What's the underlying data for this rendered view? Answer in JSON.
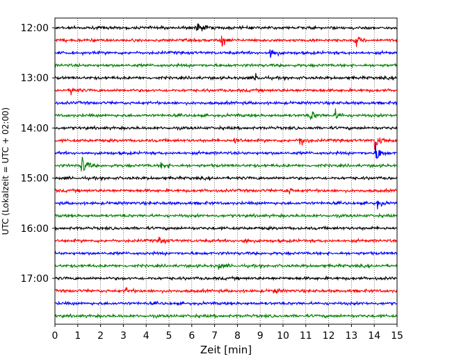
{
  "chart_data": {
    "type": "line",
    "subtype": "helicorder",
    "title": "",
    "xlabel": "Zeit  [min]",
    "ylabel": "UTC (Lokalzeit = UTC + 02:00)",
    "xlim": [
      0,
      15
    ],
    "x_ticks": [
      0,
      1,
      2,
      3,
      4,
      5,
      6,
      7,
      8,
      9,
      10,
      11,
      12,
      13,
      14,
      15
    ],
    "x_tick_labels": [
      "0",
      "1",
      "2",
      "3",
      "4",
      "5",
      "6",
      "7",
      "8",
      "9",
      "10",
      "11",
      "12",
      "13",
      "14",
      "15"
    ],
    "y_tick_labels": [
      "12:00",
      "13:00",
      "14:00",
      "15:00",
      "16:00",
      "17:00"
    ],
    "grid": "vertical-dotted",
    "line_interval_minutes": 15,
    "trace_colors": [
      "#000000",
      "#ff0000",
      "#0000ff",
      "#008000"
    ],
    "traces": [
      {
        "start": "12:00",
        "color": "#000000"
      },
      {
        "start": "12:15",
        "color": "#ff0000"
      },
      {
        "start": "12:30",
        "color": "#0000ff"
      },
      {
        "start": "12:45",
        "color": "#008000"
      },
      {
        "start": "13:00",
        "color": "#000000"
      },
      {
        "start": "13:15",
        "color": "#ff0000"
      },
      {
        "start": "13:30",
        "color": "#0000ff"
      },
      {
        "start": "13:45",
        "color": "#008000"
      },
      {
        "start": "14:00",
        "color": "#000000"
      },
      {
        "start": "14:15",
        "color": "#ff0000"
      },
      {
        "start": "14:30",
        "color": "#0000ff"
      },
      {
        "start": "14:45",
        "color": "#008000"
      },
      {
        "start": "15:00",
        "color": "#000000"
      },
      {
        "start": "15:15",
        "color": "#ff0000"
      },
      {
        "start": "15:30",
        "color": "#0000ff"
      },
      {
        "start": "15:45",
        "color": "#008000"
      },
      {
        "start": "16:00",
        "color": "#000000"
      },
      {
        "start": "16:15",
        "color": "#ff0000"
      },
      {
        "start": "16:30",
        "color": "#0000ff"
      },
      {
        "start": "16:45",
        "color": "#008000"
      },
      {
        "start": "17:00",
        "color": "#000000"
      },
      {
        "start": "17:15",
        "color": "#ff0000"
      },
      {
        "start": "17:30",
        "color": "#0000ff"
      },
      {
        "start": "17:45",
        "color": "#008000"
      }
    ],
    "events": [
      {
        "trace": 0,
        "minute": 6.25,
        "amplitude": 1.0
      },
      {
        "trace": 1,
        "minute": 7.3,
        "amplitude": 0.9
      },
      {
        "trace": 1,
        "minute": 13.2,
        "amplitude": 0.6
      },
      {
        "trace": 2,
        "minute": 9.45,
        "amplitude": 0.9
      },
      {
        "trace": 4,
        "minute": 8.8,
        "amplitude": 0.5
      },
      {
        "trace": 5,
        "minute": 0.7,
        "amplitude": 0.7
      },
      {
        "trace": 7,
        "minute": 11.2,
        "amplitude": 0.8
      },
      {
        "trace": 7,
        "minute": 12.3,
        "amplitude": 0.6
      },
      {
        "trace": 9,
        "minute": 7.9,
        "amplitude": 0.4
      },
      {
        "trace": 9,
        "minute": 10.75,
        "amplitude": 1.0
      },
      {
        "trace": 9,
        "minute": 14.05,
        "amplitude": 1.4
      },
      {
        "trace": 10,
        "minute": 14.1,
        "amplitude": 1.3
      },
      {
        "trace": 11,
        "minute": 1.2,
        "amplitude": 1.6
      },
      {
        "trace": 11,
        "minute": 4.7,
        "amplitude": 0.5
      },
      {
        "trace": 13,
        "minute": 10.2,
        "amplitude": 0.5
      },
      {
        "trace": 14,
        "minute": 14.15,
        "amplitude": 0.5
      },
      {
        "trace": 17,
        "minute": 4.6,
        "amplitude": 0.5
      },
      {
        "trace": 17,
        "minute": 8.3,
        "amplitude": 0.4
      },
      {
        "trace": 19,
        "minute": 7.2,
        "amplitude": 0.4
      },
      {
        "trace": 21,
        "minute": 3.1,
        "amplitude": 0.4
      },
      {
        "trace": 21,
        "minute": 9.6,
        "amplitude": 0.4
      }
    ]
  }
}
